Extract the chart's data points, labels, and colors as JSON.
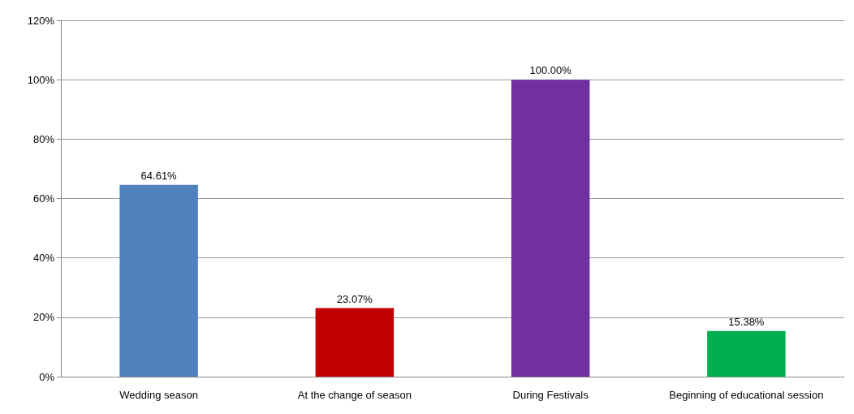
{
  "chart_data": {
    "type": "bar",
    "categories": [
      "Wedding season",
      "At the change of season",
      "During Festivals",
      "Beginning of educational session"
    ],
    "values": [
      64.61,
      23.07,
      100,
      15.38
    ],
    "colors": [
      "#4f81bd",
      "#c00000",
      "#7030a0",
      "#00b050"
    ],
    "value_labels": [
      "64.61%",
      "23.07%",
      "100.00%",
      "15.38%"
    ],
    "ylim": [
      0,
      120
    ],
    "yticks": [
      {
        "value": 0,
        "label": "0%"
      },
      {
        "value": 20,
        "label": "20%"
      },
      {
        "value": 40,
        "label": "40%"
      },
      {
        "value": 60,
        "label": "60%"
      },
      {
        "value": 80,
        "label": "80%"
      },
      {
        "value": 100,
        "label": "100%"
      },
      {
        "value": 120,
        "label": "120%"
      }
    ],
    "grid": "y"
  }
}
